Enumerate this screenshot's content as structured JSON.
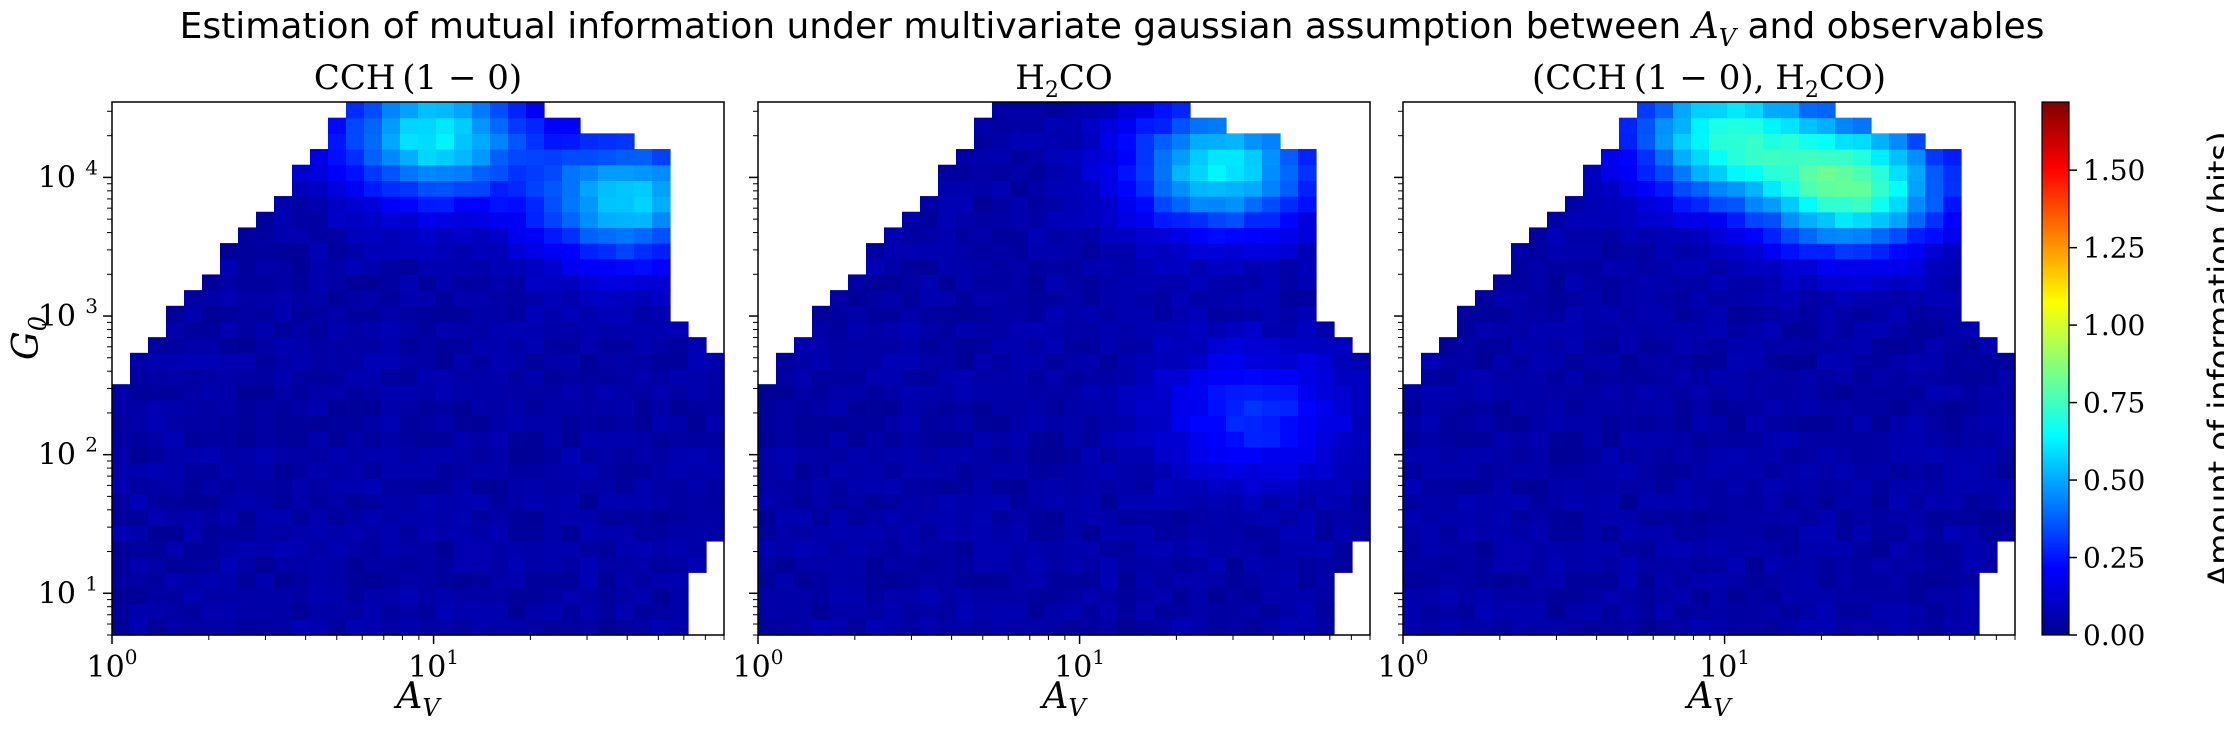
{
  "figure": {
    "title_prefix": "Estimation of mutual information under multivariate gaussian assumption between ",
    "title_var": "A",
    "title_var_sub": "V",
    "title_suffix": " and observables"
  },
  "chart_data": [
    {
      "type": "heatmap",
      "title": "CCH (1 − 0)",
      "xlabel": "A_V",
      "ylabel": "G_0",
      "xscale": "log",
      "yscale": "log",
      "xlim": [
        1,
        80
      ],
      "ylim": [
        5,
        35000
      ],
      "x_ticks": [
        "10^0",
        "10^1"
      ],
      "y_ticks": [
        "10^1",
        "10^2",
        "10^3",
        "10^4"
      ],
      "hotspots": [
        {
          "x": 10,
          "y": 20000,
          "value": 0.55
        },
        {
          "x": 40,
          "y": 7000,
          "value": 0.5
        }
      ]
    },
    {
      "type": "heatmap",
      "title": "H2CO",
      "xlabel": "A_V",
      "ylabel": "",
      "xscale": "log",
      "yscale": "log",
      "xlim": [
        1,
        80
      ],
      "ylim": [
        5,
        35000
      ],
      "x_ticks": [
        "10^0",
        "10^1"
      ],
      "y_ticks": [],
      "hotspots": [
        {
          "x": 28,
          "y": 12000,
          "value": 0.55
        },
        {
          "x": 35,
          "y": 200,
          "value": 0.22
        }
      ]
    },
    {
      "type": "heatmap",
      "title": "(CCH (1 − 0), H2CO)",
      "xlabel": "A_V",
      "ylabel": "",
      "xscale": "log",
      "yscale": "log",
      "xlim": [
        1,
        80
      ],
      "ylim": [
        5,
        35000
      ],
      "x_ticks": [
        "10^0",
        "10^1"
      ],
      "y_ticks": [],
      "hotspots": [
        {
          "x": 10,
          "y": 20000,
          "value": 0.6
        },
        {
          "x": 25,
          "y": 9000,
          "value": 0.72
        }
      ]
    }
  ],
  "colorbar": {
    "label": "Amount of information (bits)",
    "colormap": "jet",
    "range": [
      0,
      1.72
    ],
    "ticks": [
      "0.00",
      "0.25",
      "0.50",
      "0.75",
      "1.00",
      "1.25",
      "1.50"
    ]
  }
}
